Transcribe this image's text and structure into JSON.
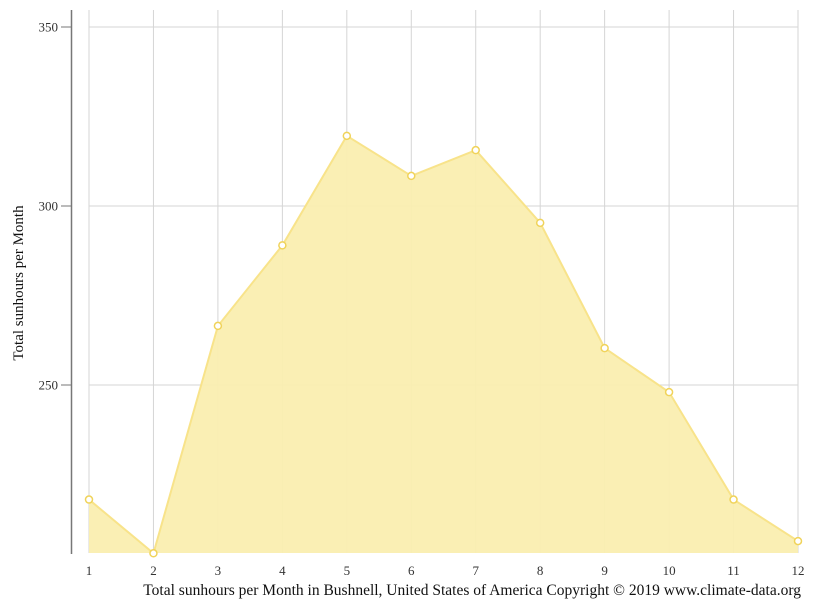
{
  "chart_data": {
    "type": "area",
    "title": "",
    "caption": "Total sunhours per Month in Bushnell, United States of America Copyright © 2019 www.climate-data.org",
    "xlabel": "",
    "ylabel": "Total sunhours per Month",
    "categories": [
      "1",
      "2",
      "3",
      "4",
      "5",
      "6",
      "7",
      "8",
      "9",
      "10",
      "11",
      "12"
    ],
    "series": [
      {
        "name": "Total sunhours per Month",
        "values": [
          218,
          203,
          266.5,
          289,
          319.6,
          308.4,
          315.6,
          295.3,
          260.3,
          248,
          218,
          206.4
        ]
      }
    ],
    "yticks": [
      250,
      300,
      350
    ],
    "ylim": [
      203,
      355
    ],
    "grid": true,
    "legend": "none",
    "colors": {
      "fill": "#faeeb0",
      "line": "#f8e38a",
      "marker_stroke": "#f0d35a",
      "marker_fill": "#ffffff",
      "grid": "#d5d5d5",
      "axis": "#777777"
    }
  }
}
